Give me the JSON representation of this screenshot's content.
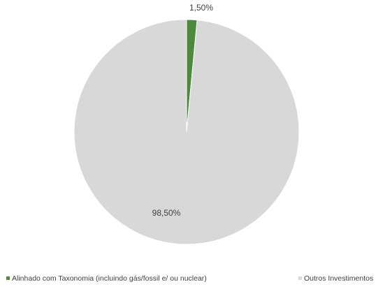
{
  "chart_data": {
    "type": "pie",
    "categories": [
      "Alinhado com Taxonomia (incluindo gás/fossil e/ ou nuclear)",
      "Outros Investimentos"
    ],
    "values": [
      1.5,
      98.5
    ],
    "data_labels": [
      "1,50%",
      "98,50%"
    ],
    "colors": [
      "#4e8a3e",
      "#d8d8d8"
    ],
    "legend_position": "bottom",
    "start_angle_deg": 0,
    "direction": "clockwise"
  }
}
